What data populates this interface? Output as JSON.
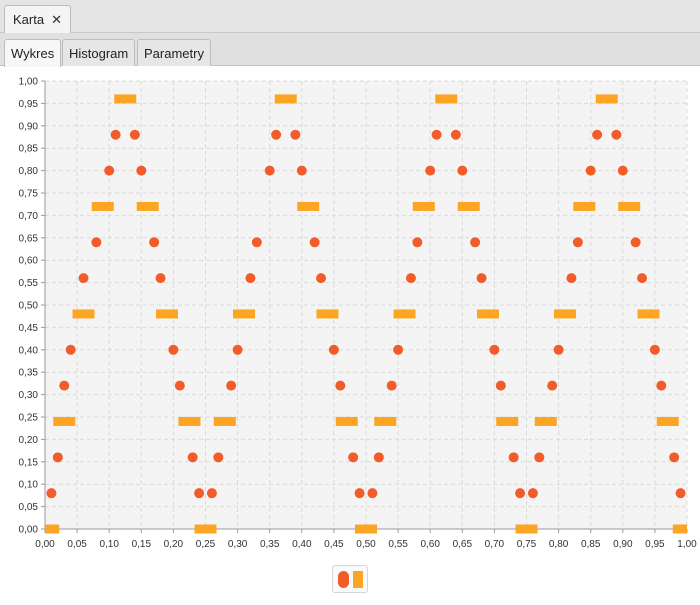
{
  "window": {
    "tab_title": "Karta",
    "close_glyph": "✕"
  },
  "tabs": [
    {
      "label": "Wykres",
      "active": true
    },
    {
      "label": "Histogram",
      "active": false
    },
    {
      "label": "Parametry",
      "active": false
    }
  ],
  "legend": {
    "icons": [
      "circle-series-icon",
      "bar-series-icon"
    ]
  },
  "chart_data": {
    "type": "scatter",
    "xlim": [
      0,
      1
    ],
    "ylim": [
      0,
      1
    ],
    "x_ticks": [
      0,
      0.05,
      0.1,
      0.15,
      0.2,
      0.25,
      0.3,
      0.35,
      0.4,
      0.45,
      0.5,
      0.55,
      0.6,
      0.65,
      0.7,
      0.75,
      0.8,
      0.85,
      0.9,
      0.95,
      1
    ],
    "y_ticks": [
      0,
      0.05,
      0.1,
      0.15,
      0.2,
      0.25,
      0.3,
      0.35,
      0.4,
      0.45,
      0.5,
      0.55,
      0.6,
      0.65,
      0.7,
      0.75,
      0.8,
      0.85,
      0.9,
      0.95,
      1
    ],
    "tick_labels_x": [
      "0,00",
      "0,05",
      "0,10",
      "0,15",
      "0,20",
      "0,25",
      "0,30",
      "0,35",
      "0,40",
      "0,45",
      "0,50",
      "0,55",
      "0,60",
      "0,65",
      "0,70",
      "0,75",
      "0,80",
      "0,85",
      "0,90",
      "0,95",
      "1,00"
    ],
    "tick_labels_y": [
      "0,00",
      "0,05",
      "0,10",
      "0,15",
      "0,20",
      "0,25",
      "0,30",
      "0,35",
      "0,40",
      "0,45",
      "0,50",
      "0,55",
      "0,60",
      "0,65",
      "0,70",
      "0,75",
      "0,80",
      "0,85",
      "0,90",
      "0,95",
      "1,00"
    ],
    "grid": true,
    "legend_position": "bottom-center",
    "series": [
      {
        "marker": "circle",
        "color": "#f25c2a",
        "x": [
          0.01,
          0.02,
          0.03,
          0.04,
          0.06,
          0.08,
          0.1,
          0.11,
          0.14,
          0.15,
          0.17,
          0.18,
          0.2,
          0.21,
          0.23,
          0.24,
          0.26,
          0.27,
          0.29,
          0.3,
          0.32,
          0.33,
          0.35,
          0.36,
          0.39,
          0.4,
          0.42,
          0.43,
          0.45,
          0.46,
          0.48,
          0.49,
          0.51,
          0.52,
          0.54,
          0.55,
          0.57,
          0.58,
          0.6,
          0.61,
          0.64,
          0.65,
          0.67,
          0.68,
          0.7,
          0.71,
          0.73,
          0.74,
          0.76,
          0.77,
          0.79,
          0.8,
          0.82,
          0.83,
          0.85,
          0.86,
          0.89,
          0.9,
          0.92,
          0.93,
          0.95,
          0.96,
          0.98,
          0.99
        ],
        "y": [
          0.08,
          0.16,
          0.32,
          0.4,
          0.56,
          0.64,
          0.8,
          0.88,
          0.88,
          0.8,
          0.64,
          0.56,
          0.4,
          0.32,
          0.16,
          0.08,
          0.08,
          0.16,
          0.32,
          0.4,
          0.56,
          0.64,
          0.8,
          0.88,
          0.88,
          0.8,
          0.64,
          0.56,
          0.4,
          0.32,
          0.16,
          0.08,
          0.08,
          0.16,
          0.32,
          0.4,
          0.56,
          0.64,
          0.8,
          0.88,
          0.88,
          0.8,
          0.64,
          0.56,
          0.4,
          0.32,
          0.16,
          0.08,
          0.08,
          0.16,
          0.32,
          0.4,
          0.56,
          0.64,
          0.8,
          0.88,
          0.88,
          0.8,
          0.64,
          0.56,
          0.4,
          0.32,
          0.16,
          0.08
        ]
      },
      {
        "marker": "bar",
        "color": "#fba522",
        "x": [
          0.005,
          0.03,
          0.06,
          0.09,
          0.125,
          0.16,
          0.19,
          0.225,
          0.25,
          0.28,
          0.31,
          0.375,
          0.41,
          0.44,
          0.47,
          0.5,
          0.53,
          0.56,
          0.59,
          0.625,
          0.66,
          0.69,
          0.72,
          0.75,
          0.78,
          0.81,
          0.84,
          0.875,
          0.91,
          0.94,
          0.97,
          0.995
        ],
        "y": [
          0,
          0.24,
          0.48,
          0.72,
          0.96,
          0.72,
          0.48,
          0.24,
          0,
          0.24,
          0.48,
          0.96,
          0.72,
          0.48,
          0.24,
          0,
          0.24,
          0.48,
          0.72,
          0.96,
          0.72,
          0.48,
          0.24,
          0,
          0.24,
          0.48,
          0.72,
          0.96,
          0.72,
          0.48,
          0.24,
          0
        ]
      }
    ]
  }
}
